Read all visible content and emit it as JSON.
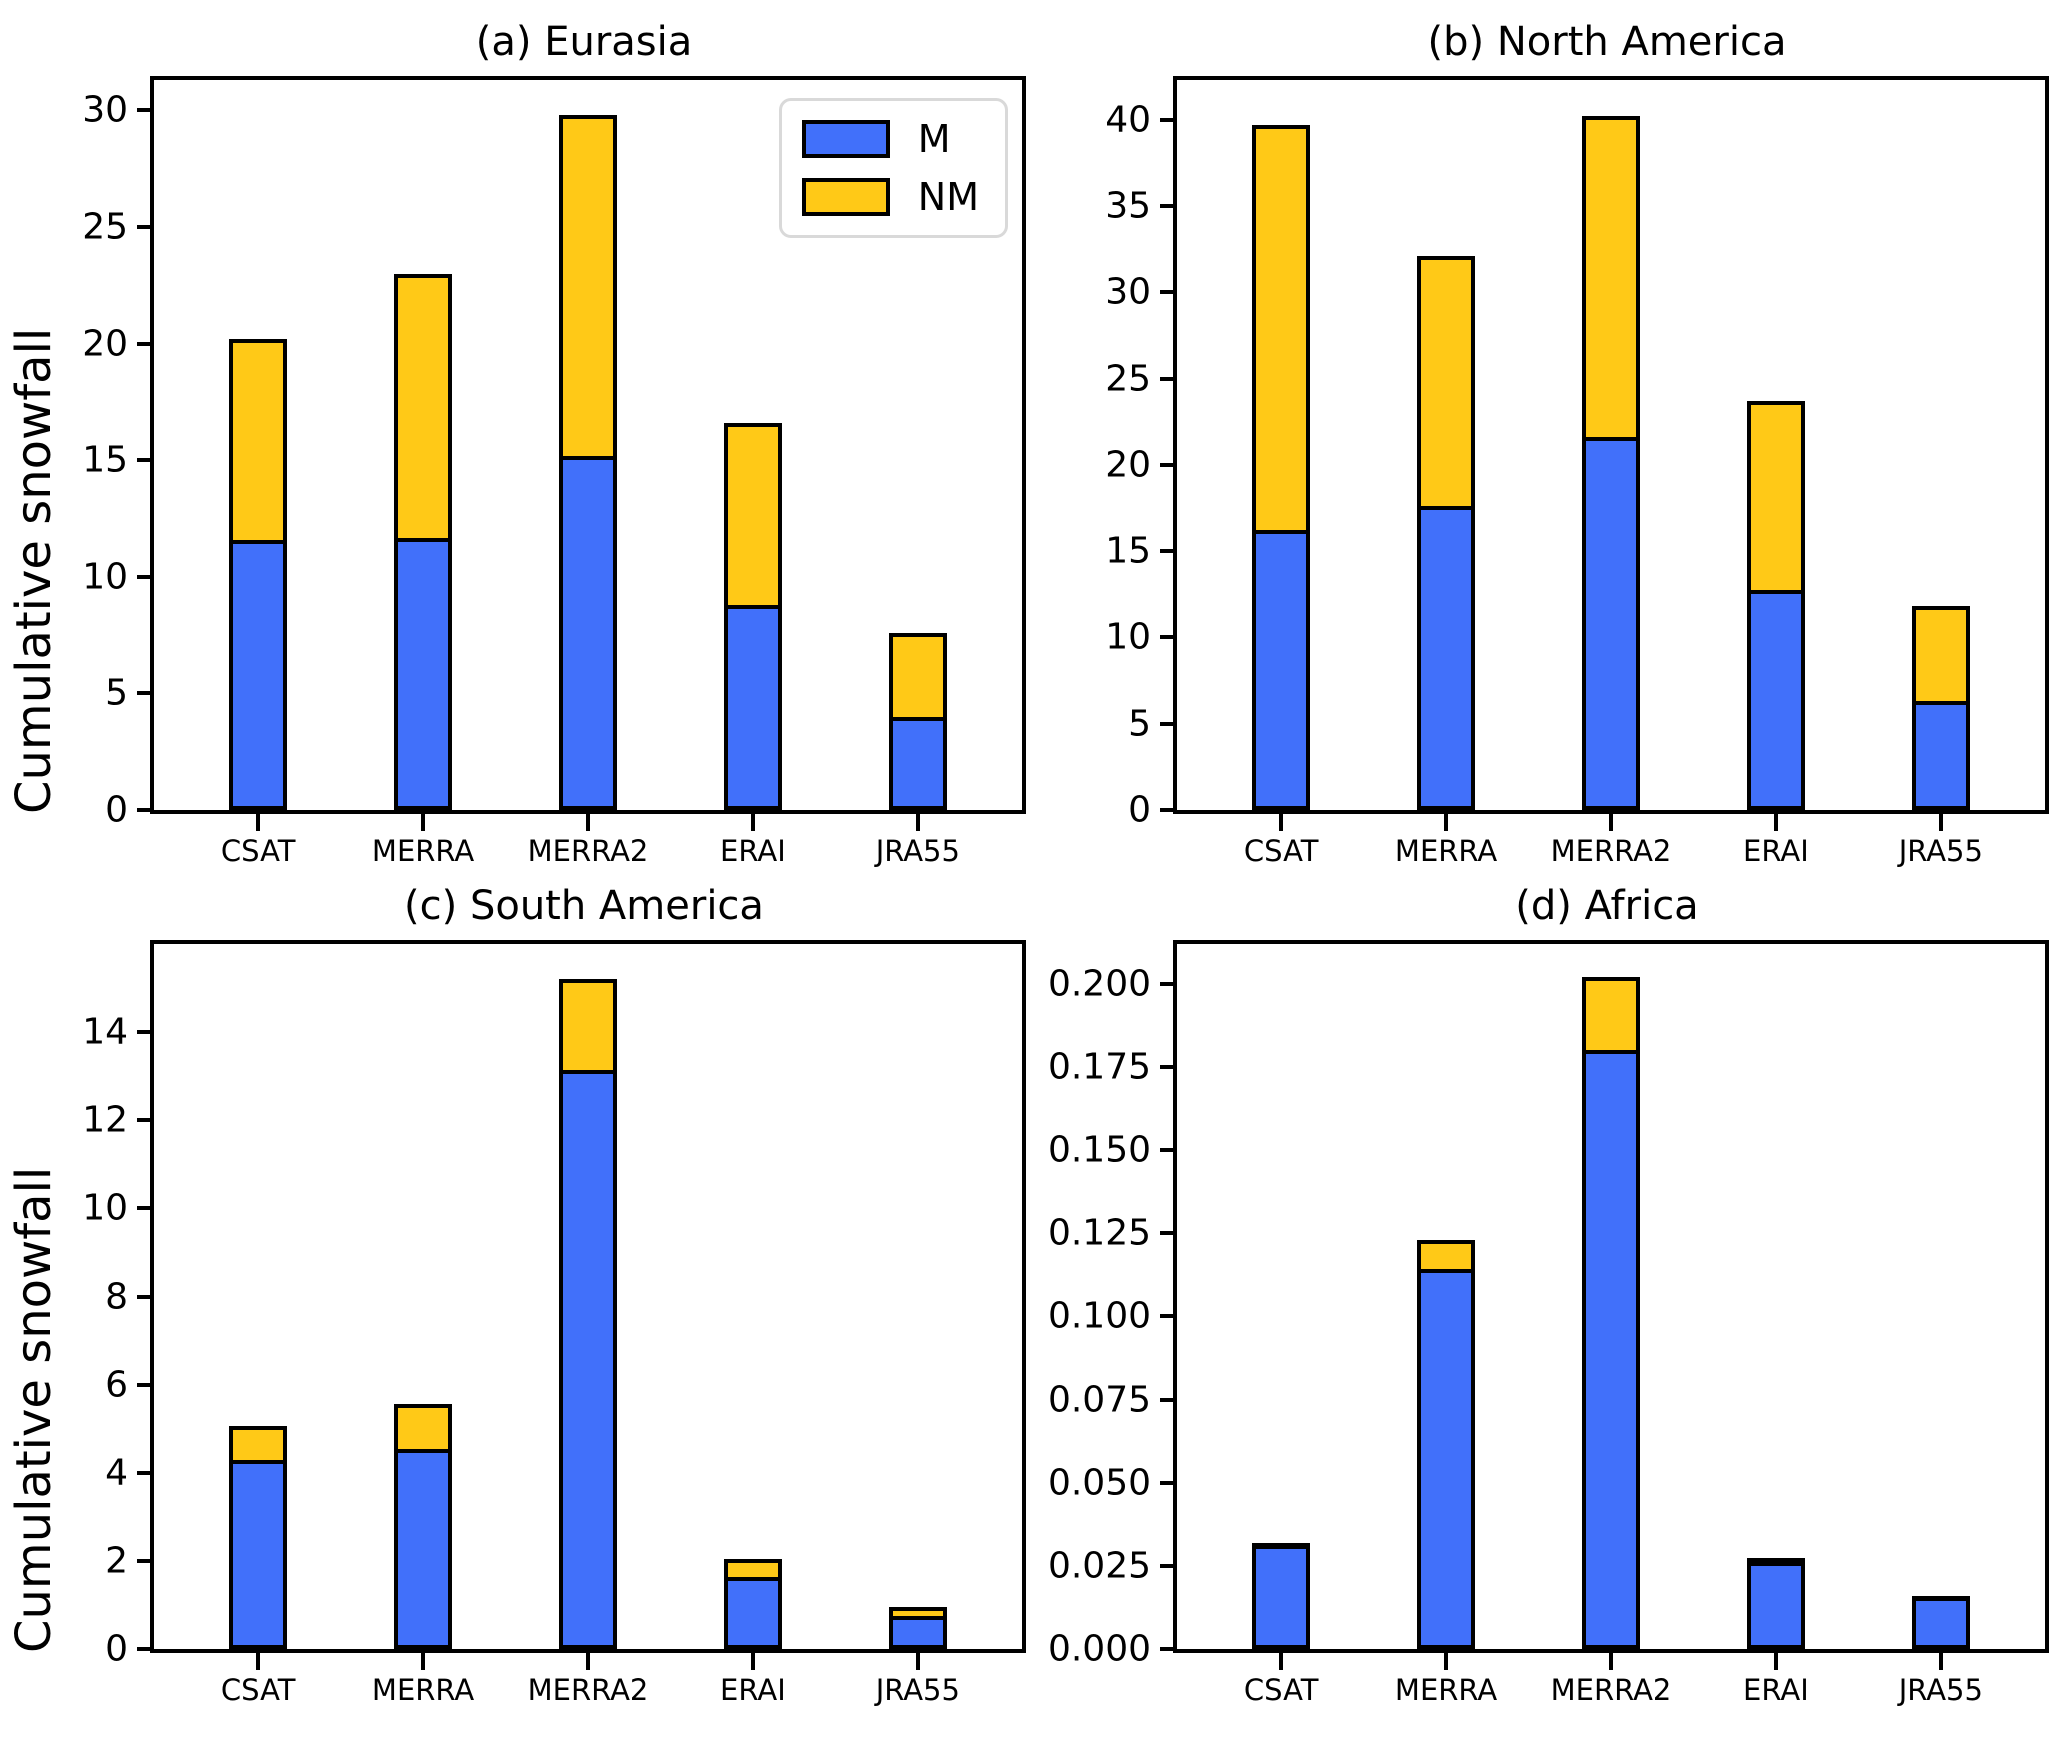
{
  "colors": {
    "m": "#4170FA",
    "nm": "#FFC917",
    "edge": "#000000"
  },
  "legend": {
    "entries": [
      {
        "label": "M",
        "color": "#4170FA"
      },
      {
        "label": "NM",
        "color": "#FFC917"
      }
    ]
  },
  "chart_data": [
    {
      "type": "bar",
      "stacked": true,
      "title": "(a) Eurasia",
      "ylabel": "Cumulative snowfall",
      "categories": [
        "CSAT",
        "MERRA",
        "MERRA2",
        "ERAI",
        "JRA55"
      ],
      "series": [
        {
          "name": "M",
          "values": [
            11.4,
            11.5,
            15.0,
            8.6,
            3.8
          ]
        },
        {
          "name": "NM",
          "values": [
            8.8,
            11.5,
            14.8,
            8.0,
            3.8
          ]
        }
      ],
      "totals": [
        20.2,
        23.0,
        29.8,
        16.6,
        7.6
      ],
      "ylim": [
        0,
        31.3
      ],
      "yticks": [
        0,
        5,
        10,
        15,
        20,
        25,
        30
      ],
      "ytick_labels": [
        "0",
        "5",
        "10",
        "15",
        "20",
        "25",
        "30"
      ],
      "grid": false,
      "legend_position": "upper right"
    },
    {
      "type": "bar",
      "stacked": true,
      "title": "(b) North America",
      "categories": [
        "CSAT",
        "MERRA",
        "MERRA2",
        "ERAI",
        "JRA55"
      ],
      "series": [
        {
          "name": "M",
          "values": [
            16.0,
            17.4,
            21.4,
            12.5,
            6.1
          ]
        },
        {
          "name": "NM",
          "values": [
            23.7,
            14.7,
            18.8,
            11.2,
            5.7
          ]
        }
      ],
      "totals": [
        39.7,
        32.1,
        40.2,
        23.7,
        11.8
      ],
      "ylim": [
        0,
        42.3
      ],
      "yticks": [
        0,
        5,
        10,
        15,
        20,
        25,
        30,
        35,
        40
      ],
      "ytick_labels": [
        "0",
        "5",
        "10",
        "15",
        "20",
        "25",
        "30",
        "35",
        "40"
      ],
      "grid": false
    },
    {
      "type": "bar",
      "stacked": true,
      "title": "(c) South America",
      "ylabel": "Cumulative snowfall",
      "categories": [
        "CSAT",
        "MERRA",
        "MERRA2",
        "ERAI",
        "JRA55"
      ],
      "series": [
        {
          "name": "M",
          "values": [
            4.2,
            4.45,
            13.05,
            1.55,
            0.65
          ]
        },
        {
          "name": "NM",
          "values": [
            0.85,
            1.1,
            2.15,
            0.5,
            0.3
          ]
        }
      ],
      "totals": [
        5.05,
        5.55,
        15.2,
        2.05,
        0.95
      ],
      "ylim": [
        0,
        16.0
      ],
      "yticks": [
        0,
        2,
        4,
        6,
        8,
        10,
        12,
        14
      ],
      "ytick_labels": [
        "0",
        "2",
        "4",
        "6",
        "8",
        "10",
        "12",
        "14"
      ],
      "grid": false
    },
    {
      "type": "bar",
      "stacked": true,
      "title": "(d) Africa",
      "categories": [
        "CSAT",
        "MERRA",
        "MERRA2",
        "ERAI",
        "JRA55"
      ],
      "series": [
        {
          "name": "M",
          "values": [
            0.03,
            0.113,
            0.179,
            0.025,
            0.0145
          ]
        },
        {
          "name": "NM",
          "values": [
            0.002,
            0.01,
            0.023,
            0.0025,
            0.0015
          ]
        }
      ],
      "totals": [
        0.032,
        0.123,
        0.202,
        0.0275,
        0.016
      ],
      "ylim": [
        0,
        0.212
      ],
      "yticks": [
        0.0,
        0.025,
        0.05,
        0.075,
        0.1,
        0.125,
        0.15,
        0.175,
        0.2
      ],
      "ytick_labels": [
        "0.000",
        "0.025",
        "0.050",
        "0.075",
        "0.100",
        "0.125",
        "0.150",
        "0.175",
        "0.200"
      ],
      "grid": false
    }
  ]
}
